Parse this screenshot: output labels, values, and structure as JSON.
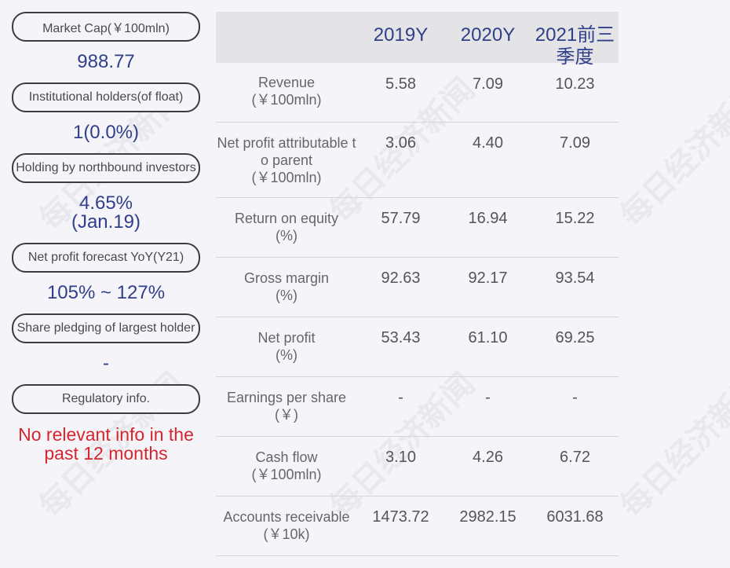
{
  "left": [
    {
      "label": "Market Cap(￥100mln)",
      "value": "988.77"
    },
    {
      "label": "Institutional holders(of float)",
      "value": "1(0.0%)"
    },
    {
      "label": "Holding by northbound investors",
      "value": "4.65%\n(Jan.19)"
    },
    {
      "label": "Net profit forecast YoY(Y21)",
      "value": "105% ~ 127%"
    },
    {
      "label": "Share pledging of largest holder",
      "value": "-"
    },
    {
      "label": "Regulatory info.",
      "value": "No relevant info in the past 12 months"
    }
  ],
  "table": {
    "columns": [
      "2019Y",
      "2020Y",
      "2021前三季度"
    ],
    "rows": [
      {
        "label": "Revenue",
        "unit": "(￥100mln)",
        "values": [
          "5.58",
          "7.09",
          "10.23"
        ]
      },
      {
        "label": "Net profit attributable to parent",
        "unit": "(￥100mln)",
        "values": [
          "3.06",
          "4.40",
          "7.09"
        ]
      },
      {
        "label": "Return on equity",
        "unit": "(%)",
        "values": [
          "57.79",
          "16.94",
          "15.22"
        ]
      },
      {
        "label": "Gross margin",
        "unit": "(%)",
        "values": [
          "92.63",
          "92.17",
          "93.54"
        ]
      },
      {
        "label": "Net profit",
        "unit": "(%)",
        "values": [
          "53.43",
          "61.10",
          "69.25"
        ]
      },
      {
        "label": "Earnings per share",
        "unit": "(￥)",
        "values": [
          "-",
          "-",
          "-"
        ]
      },
      {
        "label": "Cash flow",
        "unit": "(￥100mln)",
        "values": [
          "3.10",
          "4.26",
          "6.72"
        ]
      },
      {
        "label": "Accounts receivable",
        "unit": "(￥10k)",
        "values": [
          "1473.72",
          "2982.15",
          "6031.68"
        ]
      }
    ]
  },
  "watermark": "每日经济新闻"
}
